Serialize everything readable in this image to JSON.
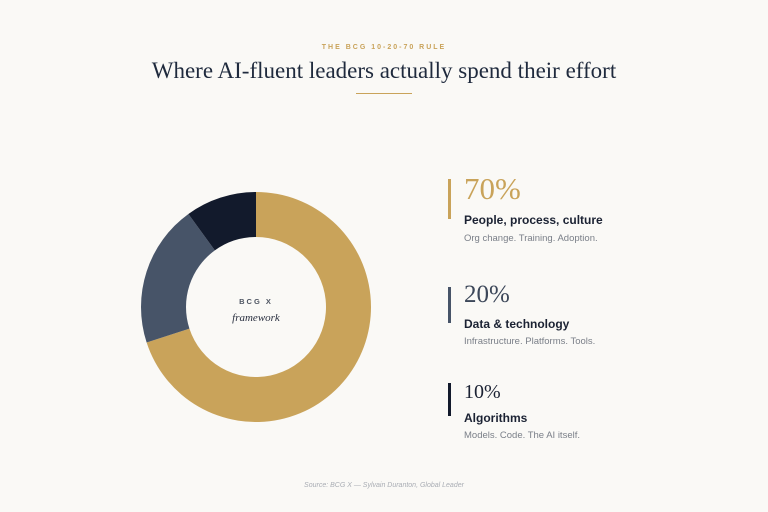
{
  "header": {
    "eyebrow": "THE BCG 10-20-70 RULE",
    "title": "Where AI-fluent leaders actually spend their effort"
  },
  "chart_data": {
    "type": "pie",
    "center": {
      "line1": "BCG X",
      "line2": "framework"
    },
    "slices": [
      {
        "percent_label": "70%",
        "value": 70,
        "label": "People, process, culture",
        "description": "Org change. Training. Adoption.",
        "color": "#c9a35a"
      },
      {
        "percent_label": "20%",
        "value": 20,
        "label": "Data & technology",
        "description": "Infrastructure. Platforms. Tools.",
        "color": "#475468"
      },
      {
        "percent_label": "10%",
        "value": 10,
        "label": "Algorithms",
        "description": "Models. Code. The AI itself.",
        "color": "#121a2c"
      }
    ]
  },
  "footer": {
    "source": "Source: BCG X — Sylvain Duranton, Global Leader"
  },
  "colors": {
    "background": "#faf9f6",
    "accent": "#c9a35a",
    "title": "#1f2a3d"
  }
}
